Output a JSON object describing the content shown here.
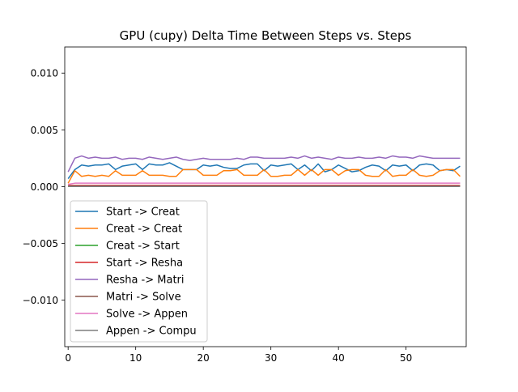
{
  "chart_data": {
    "type": "line",
    "title": "GPU (cupy) Delta Time Between Steps vs. Steps",
    "xlabel": "",
    "ylabel": "",
    "xlim": [
      -0.5,
      58.9
    ],
    "ylim": [
      -0.0141,
      0.0123
    ],
    "x_ticks": [
      0,
      10,
      20,
      30,
      40,
      50
    ],
    "x_tick_labels": [
      "0",
      "10",
      "20",
      "30",
      "40",
      "50"
    ],
    "y_ticks": [
      0.01,
      0.005,
      0.0,
      -0.005,
      -0.01
    ],
    "y_tick_labels": [
      "0.010",
      "0.005",
      "0.000",
      "−0.005",
      "−0.010"
    ],
    "grid": false,
    "legend_position": "lower-left",
    "x": [
      0,
      1,
      2,
      3,
      4,
      5,
      6,
      7,
      8,
      9,
      10,
      11,
      12,
      13,
      14,
      15,
      16,
      17,
      18,
      19,
      20,
      21,
      22,
      23,
      24,
      25,
      26,
      27,
      28,
      29,
      30,
      31,
      32,
      33,
      34,
      35,
      36,
      37,
      38,
      39,
      40,
      41,
      42,
      43,
      44,
      45,
      46,
      47,
      48,
      49,
      50,
      51,
      52,
      53,
      54,
      55,
      56,
      57,
      58
    ],
    "series": [
      {
        "name": "Start -> Creat",
        "color": "#1f77b4",
        "values": [
          0.0007,
          0.0015,
          0.0019,
          0.0018,
          0.0019,
          0.0019,
          0.002,
          0.0015,
          0.0018,
          0.0019,
          0.002,
          0.0015,
          0.002,
          0.0019,
          0.0019,
          0.0021,
          0.0018,
          0.0015,
          0.0015,
          0.0015,
          0.0019,
          0.0018,
          0.0019,
          0.0017,
          0.0016,
          0.0016,
          0.0019,
          0.002,
          0.002,
          0.0014,
          0.0019,
          0.0018,
          0.0019,
          0.002,
          0.0015,
          0.0019,
          0.0014,
          0.002,
          0.0013,
          0.0015,
          0.0019,
          0.0016,
          0.0013,
          0.0014,
          0.0017,
          0.0019,
          0.0018,
          0.0014,
          0.0019,
          0.0018,
          0.0019,
          0.0014,
          0.0019,
          0.002,
          0.0019,
          0.0014,
          0.0015,
          0.0014,
          0.0018
        ]
      },
      {
        "name": "Creat -> Creat",
        "color": "#ff7f0e",
        "values": [
          0.0003,
          0.0014,
          0.0009,
          0.001,
          0.0009,
          0.001,
          0.0009,
          0.0014,
          0.001,
          0.001,
          0.001,
          0.0014,
          0.001,
          0.001,
          0.001,
          0.0009,
          0.0009,
          0.0015,
          0.0015,
          0.0015,
          0.001,
          0.001,
          0.001,
          0.0014,
          0.0014,
          0.0015,
          0.001,
          0.001,
          0.001,
          0.0015,
          0.0009,
          0.0009,
          0.001,
          0.001,
          0.0015,
          0.001,
          0.0015,
          0.001,
          0.0015,
          0.0015,
          0.001,
          0.0014,
          0.0015,
          0.0015,
          0.001,
          0.0009,
          0.0009,
          0.0015,
          0.0009,
          0.001,
          0.001,
          0.0015,
          0.001,
          0.0009,
          0.001,
          0.0014,
          0.0015,
          0.0015,
          0.0009
        ]
      },
      {
        "name": "Creat -> Start",
        "color": "#2ca02c",
        "values": [
          2e-05,
          2e-05,
          2e-05,
          2e-05,
          2e-05,
          2e-05,
          2e-05,
          2e-05,
          2e-05,
          2e-05,
          2e-05,
          2e-05,
          2e-05,
          2e-05,
          2e-05,
          2e-05,
          2e-05,
          2e-05,
          2e-05,
          2e-05,
          2e-05,
          2e-05,
          2e-05,
          2e-05,
          2e-05,
          2e-05,
          2e-05,
          2e-05,
          2e-05,
          2e-05,
          2e-05,
          2e-05,
          2e-05,
          2e-05,
          2e-05,
          2e-05,
          2e-05,
          2e-05,
          2e-05,
          2e-05,
          2e-05,
          2e-05,
          2e-05,
          2e-05,
          2e-05,
          2e-05,
          2e-05,
          2e-05,
          2e-05,
          2e-05,
          2e-05,
          2e-05,
          2e-05,
          2e-05,
          2e-05,
          2e-05,
          2e-05,
          2e-05,
          2e-05
        ]
      },
      {
        "name": "Start -> Resha",
        "color": "#d62728",
        "values": [
          0.0001,
          0.0001,
          0.0001,
          0.0001,
          0.0001,
          0.0001,
          0.0001,
          0.0001,
          0.0001,
          0.0001,
          0.0001,
          0.0001,
          0.0001,
          0.0001,
          0.0001,
          0.0001,
          0.0001,
          0.0001,
          0.0001,
          0.0001,
          0.0001,
          0.0001,
          0.0001,
          0.0001,
          0.0001,
          0.0001,
          0.0001,
          0.0001,
          0.0001,
          0.0001,
          0.0001,
          0.0001,
          0.0001,
          0.0001,
          0.0001,
          0.0001,
          0.0001,
          0.0001,
          0.0001,
          0.0001,
          0.0001,
          0.0001,
          0.0001,
          0.0001,
          0.0001,
          0.0001,
          0.0001,
          0.0001,
          0.0001,
          0.0001,
          0.0001,
          0.0001,
          0.0001,
          0.0001,
          0.0001,
          0.0001,
          0.0001,
          0.0001,
          0.0001
        ]
      },
      {
        "name": "Resha -> Matri",
        "color": "#9467bd",
        "values": [
          0.0013,
          0.0025,
          0.0027,
          0.0025,
          0.0026,
          0.0025,
          0.0025,
          0.0026,
          0.0024,
          0.0025,
          0.0025,
          0.0024,
          0.0026,
          0.0025,
          0.0024,
          0.0025,
          0.0026,
          0.0024,
          0.0023,
          0.0024,
          0.0025,
          0.0024,
          0.0024,
          0.0024,
          0.0024,
          0.0025,
          0.0024,
          0.0026,
          0.0026,
          0.0025,
          0.0025,
          0.0025,
          0.0025,
          0.0026,
          0.0025,
          0.0027,
          0.0025,
          0.0026,
          0.0025,
          0.0024,
          0.0026,
          0.0025,
          0.0025,
          0.0026,
          0.0025,
          0.0025,
          0.0026,
          0.0025,
          0.0027,
          0.0026,
          0.0026,
          0.0025,
          0.0027,
          0.0026,
          0.0025,
          0.0025,
          0.0025,
          0.0025,
          0.0025
        ]
      },
      {
        "name": "Matri -> Solve",
        "color": "#8c564b",
        "values": [
          5e-05,
          5e-05,
          5e-05,
          5e-05,
          5e-05,
          5e-05,
          5e-05,
          5e-05,
          5e-05,
          5e-05,
          5e-05,
          5e-05,
          5e-05,
          5e-05,
          5e-05,
          5e-05,
          5e-05,
          5e-05,
          5e-05,
          5e-05,
          5e-05,
          5e-05,
          5e-05,
          5e-05,
          5e-05,
          5e-05,
          5e-05,
          5e-05,
          5e-05,
          5e-05,
          5e-05,
          5e-05,
          5e-05,
          5e-05,
          5e-05,
          5e-05,
          5e-05,
          5e-05,
          5e-05,
          5e-05,
          5e-05,
          5e-05,
          5e-05,
          5e-05,
          5e-05,
          5e-05,
          5e-05,
          5e-05,
          5e-05,
          5e-05,
          5e-05,
          5e-05,
          5e-05,
          5e-05,
          5e-05,
          5e-05,
          5e-05,
          5e-05,
          5e-05
        ]
      },
      {
        "name": "Solve -> Appen",
        "color": "#e377c2",
        "values": [
          0.0002,
          0.0003,
          0.0003,
          0.0003,
          0.0003,
          0.0003,
          0.0003,
          0.0003,
          0.0003,
          0.0003,
          0.0003,
          0.0003,
          0.0003,
          0.0003,
          0.0003,
          0.0003,
          0.0003,
          0.0003,
          0.0003,
          0.0003,
          0.0003,
          0.0003,
          0.0003,
          0.0003,
          0.0003,
          0.0003,
          0.0003,
          0.0003,
          0.0003,
          0.0003,
          0.0003,
          0.0003,
          0.0003,
          0.0003,
          0.0003,
          0.0003,
          0.0003,
          0.0003,
          0.0003,
          0.0003,
          0.0003,
          0.0003,
          0.0003,
          0.0003,
          0.0003,
          0.0003,
          0.0003,
          0.0003,
          0.0003,
          0.0003,
          0.0003,
          0.0003,
          0.0003,
          0.0003,
          0.0003,
          0.0003,
          0.0003,
          0.0003,
          0.0003
        ]
      },
      {
        "name": "Appen -> Compu",
        "color": "#7f7f7f",
        "values": [
          1e-05,
          1e-05,
          1e-05,
          1e-05,
          1e-05,
          1e-05,
          1e-05,
          1e-05,
          1e-05,
          1e-05,
          1e-05,
          1e-05,
          1e-05,
          1e-05,
          1e-05,
          1e-05,
          1e-05,
          1e-05,
          1e-05,
          1e-05,
          1e-05,
          1e-05,
          1e-05,
          1e-05,
          1e-05,
          1e-05,
          1e-05,
          1e-05,
          1e-05,
          1e-05,
          1e-05,
          1e-05,
          1e-05,
          1e-05,
          1e-05,
          1e-05,
          1e-05,
          1e-05,
          1e-05,
          1e-05,
          1e-05,
          1e-05,
          1e-05,
          1e-05,
          1e-05,
          1e-05,
          1e-05,
          1e-05,
          1e-05,
          1e-05,
          1e-05,
          1e-05,
          1e-05,
          1e-05,
          1e-05,
          1e-05,
          1e-05,
          1e-05,
          1e-05
        ]
      }
    ]
  }
}
